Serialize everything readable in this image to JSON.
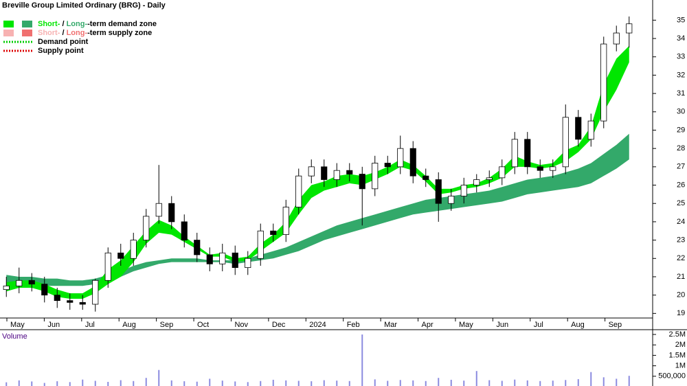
{
  "chart_data": {
    "type": "candlestick",
    "title": "Breville Group Limited Ordinary (BRG) - Daily",
    "legend": [
      {
        "parts": [
          "Short-",
          " / ",
          "Long-",
          "-term demand zone"
        ],
        "colors": [
          "#00e600",
          "#33a96a"
        ]
      },
      {
        "parts": [
          "Short-",
          " / ",
          "Long-",
          "-term supply zone"
        ],
        "colors": [
          "#f7b2b2",
          "#f07070"
        ]
      },
      {
        "parts": [
          "Demand point"
        ],
        "colors": [
          "#00cc00"
        ]
      },
      {
        "parts": [
          "Supply point"
        ],
        "colors": [
          "#dd0000"
        ]
      }
    ],
    "categories": [
      "May",
      "Jun",
      "Jul",
      "Aug",
      "Sep",
      "Oct",
      "Nov",
      "Dec",
      "2024",
      "Feb",
      "Mar",
      "Apr",
      "May",
      "Jun",
      "Jul",
      "Aug",
      "Sep"
    ],
    "open": [
      20.3,
      20.5,
      20.8,
      20.6,
      20.0,
      19.7,
      19.6,
      19.5,
      20.8,
      22.3,
      22.0,
      23.0,
      24.3,
      25.0,
      24.0,
      23.0,
      22.2,
      21.7,
      22.3,
      21.5,
      22.0,
      23.5,
      23.3,
      24.8,
      26.5,
      27.0,
      26.3,
      26.8,
      26.6,
      25.8,
      27.2,
      27.0,
      28.0,
      26.5,
      26.3,
      25.0,
      25.4,
      26.0,
      26.3,
      26.4,
      27.0,
      28.5,
      27.0,
      26.8,
      27.0,
      29.7,
      28.5,
      29.5,
      33.7,
      34.3
    ],
    "high": [
      21.0,
      21.5,
      21.2,
      21.0,
      20.4,
      20.1,
      20.0,
      20.9,
      22.6,
      22.8,
      23.4,
      24.7,
      27.1,
      25.4,
      24.4,
      23.4,
      22.6,
      22.8,
      22.7,
      22.4,
      23.9,
      23.9,
      25.2,
      26.9,
      27.4,
      27.4,
      27.2,
      27.2,
      27.0,
      27.6,
      27.6,
      28.7,
      28.4,
      26.9,
      26.7,
      25.8,
      26.4,
      26.6,
      26.8,
      27.4,
      28.9,
      28.9,
      27.4,
      27.4,
      30.4,
      30.1,
      29.9,
      34.1,
      34.7,
      35.2
    ],
    "low": [
      19.9,
      20.1,
      20.2,
      19.6,
      19.3,
      19.2,
      19.2,
      19.1,
      20.4,
      21.6,
      21.6,
      22.6,
      23.9,
      23.6,
      22.6,
      21.8,
      21.3,
      21.3,
      21.1,
      21.1,
      21.6,
      22.9,
      22.9,
      24.4,
      26.1,
      25.9,
      25.9,
      26.2,
      23.8,
      25.4,
      26.6,
      26.6,
      26.1,
      25.9,
      24.0,
      24.6,
      25.0,
      25.6,
      25.9,
      26.0,
      26.6,
      26.6,
      26.4,
      26.4,
      26.6,
      28.1,
      28.1,
      29.1,
      33.3,
      33.5
    ],
    "close": [
      20.5,
      20.8,
      20.6,
      20.0,
      19.7,
      19.6,
      19.5,
      20.8,
      22.3,
      22.0,
      23.0,
      24.3,
      25.0,
      24.0,
      23.0,
      22.2,
      21.7,
      22.3,
      21.5,
      22.0,
      23.5,
      23.3,
      24.8,
      26.5,
      27.0,
      26.3,
      26.8,
      26.6,
      25.8,
      27.2,
      27.0,
      28.0,
      26.5,
      26.3,
      25.0,
      25.4,
      26.0,
      26.3,
      26.4,
      27.0,
      28.5,
      27.0,
      26.8,
      27.0,
      29.7,
      28.5,
      29.5,
      33.7,
      34.3,
      34.8
    ],
    "bands": [
      {
        "color": "#33a96a",
        "upper": [
          21.1,
          21.0,
          21.0,
          20.9,
          20.9,
          20.8,
          20.8,
          20.9,
          21.1,
          21.3,
          21.6,
          21.8,
          21.9,
          22.0,
          22.0,
          22.0,
          21.9,
          21.9,
          21.9,
          22.0,
          22.2,
          22.4,
          22.6,
          22.9,
          23.2,
          23.5,
          23.8,
          24.0,
          24.2,
          24.4,
          24.6,
          24.8,
          25.0,
          25.2,
          25.3,
          25.4,
          25.5,
          25.6,
          25.7,
          25.9,
          26.1,
          26.3,
          26.4,
          26.5,
          26.7,
          26.9,
          27.2,
          27.7,
          28.2,
          28.8
        ],
        "lower": [
          20.6,
          20.6,
          20.6,
          20.5,
          20.5,
          20.5,
          20.5,
          20.6,
          20.8,
          21.0,
          21.3,
          21.5,
          21.7,
          21.8,
          21.8,
          21.8,
          21.8,
          21.8,
          21.7,
          21.8,
          21.9,
          22.0,
          22.2,
          22.4,
          22.7,
          23.0,
          23.2,
          23.4,
          23.6,
          23.8,
          24.0,
          24.2,
          24.4,
          24.5,
          24.6,
          24.7,
          24.8,
          24.9,
          25.0,
          25.1,
          25.3,
          25.5,
          25.6,
          25.7,
          25.8,
          25.9,
          26.1,
          26.5,
          26.9,
          27.4
        ]
      },
      {
        "color": "#00e600",
        "upper": [
          20.7,
          20.8,
          20.8,
          20.6,
          20.3,
          20.1,
          20.1,
          20.5,
          21.4,
          21.9,
          22.7,
          23.5,
          24.1,
          23.8,
          23.2,
          22.7,
          22.2,
          22.3,
          22.0,
          22.1,
          22.8,
          23.3,
          24.0,
          25.2,
          26.0,
          26.2,
          26.5,
          26.6,
          26.5,
          26.7,
          27.0,
          27.4,
          27.1,
          26.5,
          25.8,
          25.8,
          26.0,
          26.1,
          26.4,
          26.9,
          27.6,
          27.3,
          27.1,
          27.2,
          27.9,
          28.2,
          29.2,
          31.5,
          32.9,
          33.6
        ],
        "lower": [
          20.2,
          20.4,
          20.4,
          20.2,
          19.9,
          19.8,
          19.8,
          20.1,
          20.6,
          21.0,
          21.8,
          22.8,
          23.4,
          23.3,
          22.9,
          22.5,
          22.1,
          22.1,
          21.8,
          21.9,
          22.4,
          22.9,
          23.4,
          24.4,
          25.3,
          25.7,
          25.9,
          26.1,
          26.0,
          26.3,
          26.6,
          27.0,
          26.8,
          26.2,
          25.5,
          25.6,
          25.8,
          25.9,
          26.1,
          26.4,
          27.0,
          27.0,
          26.9,
          27.0,
          27.3,
          27.8,
          28.5,
          30.0,
          31.2,
          32.7
        ]
      }
    ],
    "ylim": [
      18.75,
      36.1
    ],
    "yticks": [
      19,
      20,
      21,
      22,
      23,
      24,
      25,
      26,
      27,
      28,
      29,
      30,
      31,
      32,
      33,
      34,
      35
    ],
    "volume_label": "Volume",
    "volume": [
      210000,
      300000,
      250000,
      180000,
      260000,
      220000,
      340000,
      280000,
      230000,
      310000,
      270000,
      420000,
      800000,
      300000,
      260000,
      240000,
      380000,
      290000,
      250000,
      220000,
      270000,
      330000,
      300000,
      280000,
      260000,
      310000,
      290000,
      270000,
      2500000,
      350000,
      280000,
      320000,
      300000,
      270000,
      420000,
      330000,
      290000,
      750000,
      310000,
      280000,
      340000,
      300000,
      270000,
      290000,
      320000,
      360000,
      700000,
      450000,
      380000,
      520000
    ],
    "volume_ylim": [
      0,
      2630000
    ],
    "volume_ticks": [
      {
        "value": 500000,
        "label": "500,000"
      },
      {
        "value": 1000000,
        "label": "1M"
      },
      {
        "value": 1500000,
        "label": "1.5M"
      },
      {
        "value": 2000000,
        "label": "2M"
      },
      {
        "value": 2500000,
        "label": "2.5M"
      }
    ]
  }
}
